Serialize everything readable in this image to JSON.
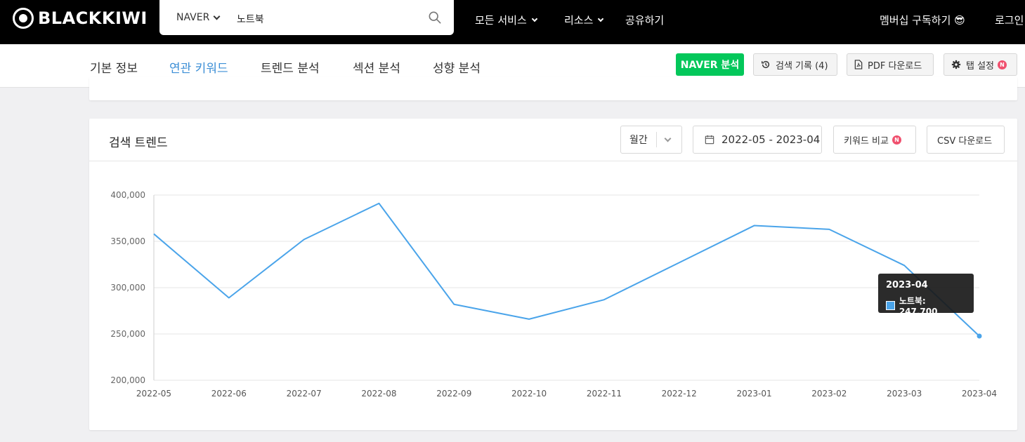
{
  "brand": {
    "name": "BLACKKIWI"
  },
  "search": {
    "engine": "NAVER",
    "query": "노트북"
  },
  "nav": {
    "all_services": "모든 서비스",
    "resources": "리소스",
    "share": "공유하기",
    "membership": "멤버십 구독하기 😎",
    "login": "로그인"
  },
  "tabs": [
    "기본 정보",
    "연관 키워드",
    "트렌드 분석",
    "섹션 분석",
    "성향 분석"
  ],
  "active_tab": "연관 키워드",
  "tools": {
    "naver": "NAVER 분석",
    "history": "검색 기록 (4)",
    "pdf": "PDF 다운로드",
    "tab_settings": "탭 설정",
    "badge": "N"
  },
  "trend_card": {
    "title": "검색 트렌드",
    "period": "월간",
    "date_range": "2022-05 - 2023-04",
    "compare": "키워드 비교",
    "csv": "CSV 다운로드"
  },
  "colors": {
    "accent": "#3d8fd6",
    "line": "#4aa4ea",
    "naver_green": "#03c75a",
    "badge_red": "#f0506e"
  },
  "chart_data": {
    "type": "line",
    "x": [
      "2022-05",
      "2022-06",
      "2022-07",
      "2022-08",
      "2022-09",
      "2022-10",
      "2022-11",
      "2022-12",
      "2023-01",
      "2023-02",
      "2023-03",
      "2023-04"
    ],
    "series": [
      {
        "name": "노트북",
        "values": [
          358000,
          289000,
          352000,
          391000,
          282000,
          266000,
          287000,
          327000,
          367000,
          363000,
          324000,
          247700
        ]
      }
    ],
    "ylim": [
      200000,
      400000
    ],
    "yticks": [
      "400,000",
      "350,000",
      "300,000",
      "250,000",
      "200,000"
    ],
    "grid": true,
    "tooltip": {
      "title": "2023-04",
      "label": "노트북: 247,700"
    }
  }
}
